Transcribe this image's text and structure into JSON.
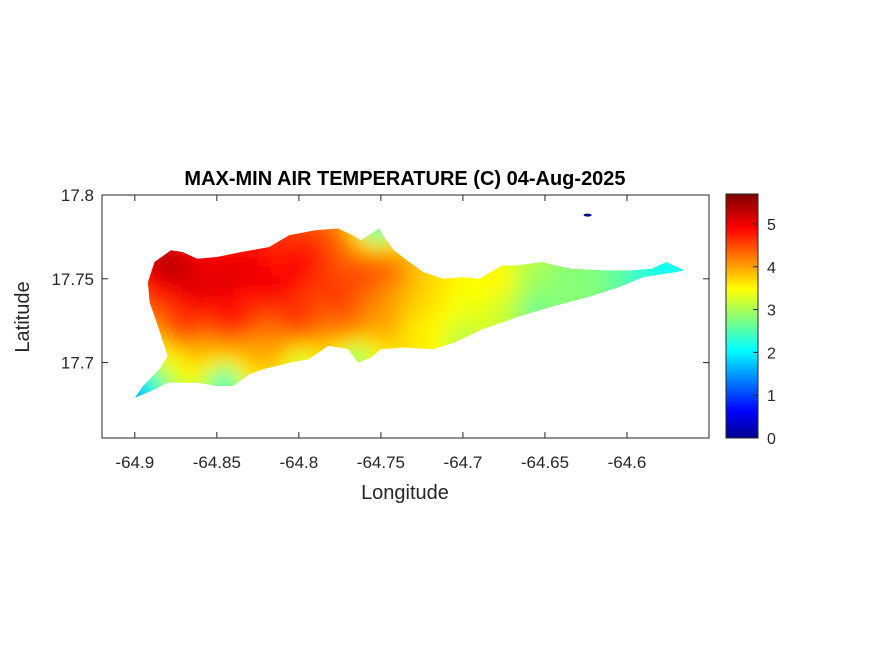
{
  "chart_data": {
    "type": "heatmap",
    "title": "MAX-MIN AIR TEMPERATURE (C) 04-Aug-2025",
    "xlabel": "Longitude",
    "ylabel": "Latitude",
    "xlim": [
      -64.92,
      -64.55
    ],
    "ylim": [
      17.655,
      17.8
    ],
    "x_ticks": [
      -64.9,
      -64.85,
      -64.8,
      -64.75,
      -64.7,
      -64.65,
      -64.6
    ],
    "x_tick_labels": [
      "-64.9",
      "-64.85",
      "-64.8",
      "-64.75",
      "-64.7",
      "-64.65",
      "-64.6"
    ],
    "y_ticks": [
      17.7,
      17.75,
      17.8
    ],
    "y_tick_labels": [
      "17.7",
      "17.75",
      "17.8"
    ],
    "colormap": "jet",
    "colorbar": {
      "range": [
        0,
        5.7
      ],
      "ticks": [
        0,
        1,
        2,
        3,
        4,
        5
      ],
      "tick_labels": [
        "0",
        "1",
        "2",
        "3",
        "4",
        "5"
      ],
      "position": "right"
    },
    "island_outline": [
      [
        -64.878,
        17.767
      ],
      [
        -64.871,
        17.766
      ],
      [
        -64.862,
        17.762
      ],
      [
        -64.85,
        17.763
      ],
      [
        -64.835,
        17.766
      ],
      [
        -64.818,
        17.769
      ],
      [
        -64.806,
        17.776
      ],
      [
        -64.79,
        17.779
      ],
      [
        -64.776,
        17.78
      ],
      [
        -64.767,
        17.776
      ],
      [
        -64.762,
        17.773
      ],
      [
        -64.756,
        17.777
      ],
      [
        -64.751,
        17.78
      ],
      [
        -64.748,
        17.775
      ],
      [
        -64.742,
        17.767
      ],
      [
        -64.734,
        17.761
      ],
      [
        -64.724,
        17.754
      ],
      [
        -64.712,
        17.75
      ],
      [
        -64.7,
        17.751
      ],
      [
        -64.69,
        17.75
      ],
      [
        -64.683,
        17.754
      ],
      [
        -64.676,
        17.758
      ],
      [
        -64.667,
        17.758
      ],
      [
        -64.652,
        17.76
      ],
      [
        -64.634,
        17.756
      ],
      [
        -64.613,
        17.755
      ],
      [
        -64.598,
        17.755
      ],
      [
        -64.585,
        17.756
      ],
      [
        -64.576,
        17.76
      ],
      [
        -64.565,
        17.755
      ],
      [
        -64.57,
        17.754
      ],
      [
        -64.59,
        17.751
      ],
      [
        -64.605,
        17.745
      ],
      [
        -64.624,
        17.739
      ],
      [
        -64.647,
        17.733
      ],
      [
        -64.667,
        17.727
      ],
      [
        -64.688,
        17.72
      ],
      [
        -64.705,
        17.712
      ],
      [
        -64.718,
        17.708
      ],
      [
        -64.736,
        17.709
      ],
      [
        -64.75,
        17.708
      ],
      [
        -64.756,
        17.703
      ],
      [
        -64.764,
        17.7
      ],
      [
        -64.77,
        17.708
      ],
      [
        -64.782,
        17.71
      ],
      [
        -64.794,
        17.702
      ],
      [
        -64.805,
        17.7
      ],
      [
        -64.822,
        17.696
      ],
      [
        -64.83,
        17.693
      ],
      [
        -64.84,
        17.686
      ],
      [
        -64.85,
        17.686
      ],
      [
        -64.862,
        17.688
      ],
      [
        -64.88,
        17.688
      ],
      [
        -64.89,
        17.683
      ],
      [
        -64.9,
        17.679
      ],
      [
        -64.895,
        17.686
      ],
      [
        -64.885,
        17.696
      ],
      [
        -64.88,
        17.704
      ],
      [
        -64.886,
        17.722
      ],
      [
        -64.891,
        17.736
      ],
      [
        -64.892,
        17.748
      ],
      [
        -64.888,
        17.76
      ]
    ],
    "field_points": [
      {
        "x": -64.88,
        "y": 17.758,
        "v": 5.6
      },
      {
        "x": -64.87,
        "y": 17.752,
        "v": 5.4
      },
      {
        "x": -64.86,
        "y": 17.74,
        "v": 5.3
      },
      {
        "x": -64.845,
        "y": 17.748,
        "v": 5.4
      },
      {
        "x": -64.83,
        "y": 17.755,
        "v": 5.3
      },
      {
        "x": -64.815,
        "y": 17.745,
        "v": 5.3
      },
      {
        "x": -64.8,
        "y": 17.755,
        "v": 5.2
      },
      {
        "x": -64.79,
        "y": 17.765,
        "v": 5.0
      },
      {
        "x": -64.775,
        "y": 17.74,
        "v": 4.9
      },
      {
        "x": -64.76,
        "y": 17.752,
        "v": 4.8
      },
      {
        "x": -64.77,
        "y": 17.725,
        "v": 4.6
      },
      {
        "x": -64.8,
        "y": 17.725,
        "v": 5.0
      },
      {
        "x": -64.84,
        "y": 17.725,
        "v": 5.2
      },
      {
        "x": -64.87,
        "y": 17.72,
        "v": 4.9
      },
      {
        "x": -64.88,
        "y": 17.7,
        "v": 3.5
      },
      {
        "x": -64.86,
        "y": 17.703,
        "v": 3.9
      },
      {
        "x": -64.83,
        "y": 17.705,
        "v": 4.0
      },
      {
        "x": -64.81,
        "y": 17.71,
        "v": 4.2
      },
      {
        "x": -64.78,
        "y": 17.77,
        "v": 4.5
      },
      {
        "x": -64.745,
        "y": 17.755,
        "v": 4.6
      },
      {
        "x": -64.745,
        "y": 17.725,
        "v": 4.2
      },
      {
        "x": -64.73,
        "y": 17.72,
        "v": 3.6
      },
      {
        "x": -64.72,
        "y": 17.74,
        "v": 3.8
      },
      {
        "x": -64.7,
        "y": 17.73,
        "v": 3.4
      },
      {
        "x": -64.69,
        "y": 17.742,
        "v": 3.6
      },
      {
        "x": -64.675,
        "y": 17.748,
        "v": 3.9
      },
      {
        "x": -64.67,
        "y": 17.735,
        "v": 3.2
      },
      {
        "x": -64.66,
        "y": 17.748,
        "v": 3.0
      },
      {
        "x": -64.65,
        "y": 17.74,
        "v": 2.9
      },
      {
        "x": -64.635,
        "y": 17.748,
        "v": 2.8
      },
      {
        "x": -64.62,
        "y": 17.748,
        "v": 2.9
      },
      {
        "x": -64.605,
        "y": 17.748,
        "v": 2.6
      },
      {
        "x": -64.59,
        "y": 17.752,
        "v": 2.3
      },
      {
        "x": -64.575,
        "y": 17.757,
        "v": 2.0
      },
      {
        "x": -64.9,
        "y": 17.68,
        "v": 0.8
      },
      {
        "x": -64.89,
        "y": 17.69,
        "v": 2.2
      },
      {
        "x": -64.845,
        "y": 17.688,
        "v": 1.8
      },
      {
        "x": -64.8,
        "y": 17.7,
        "v": 2.8
      },
      {
        "x": -64.765,
        "y": 17.702,
        "v": 2.5
      },
      {
        "x": -64.752,
        "y": 17.78,
        "v": 1.8
      },
      {
        "x": -64.7,
        "y": 17.713,
        "v": 3.0
      },
      {
        "x": -64.655,
        "y": 17.73,
        "v": 2.4
      }
    ],
    "islet": [
      -64.624,
      17.788,
      0.1
    ]
  }
}
